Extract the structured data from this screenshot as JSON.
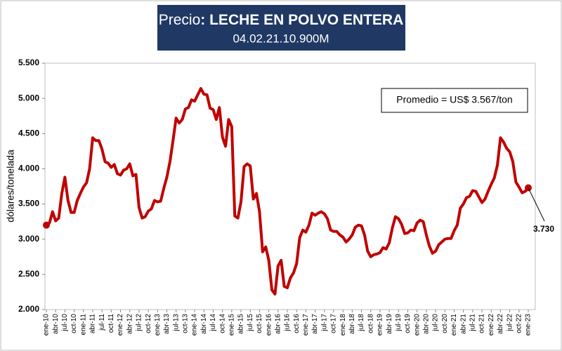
{
  "chart_data": {
    "type": "line",
    "title": [
      "Precio",
      ": LECHE EN POLVO ENTERA"
    ],
    "subtitle": "04.02.21.10.900M",
    "y_label": "dólares/tonelada",
    "annotations": [
      "Promedio = US$ 3.567/ton",
      "3.730"
    ],
    "ylim": [
      2000,
      5500
    ],
    "yticks": [
      {
        "value": 2000,
        "label": "2.000"
      },
      {
        "value": 2500,
        "label": "2.500"
      },
      {
        "value": 3000,
        "label": "3.000"
      },
      {
        "value": 3500,
        "label": "3.500"
      },
      {
        "value": 4000,
        "label": "4.000"
      },
      {
        "value": 4500,
        "label": "4.500"
      },
      {
        "value": 5000,
        "label": "5.000"
      },
      {
        "value": 5500,
        "label": "5.500"
      }
    ],
    "categories": [
      "ene-10",
      null,
      null,
      "abr-10",
      null,
      null,
      "jul-10",
      null,
      null,
      "oct-10",
      null,
      null,
      "ene-11",
      null,
      null,
      "abr-11",
      null,
      null,
      "jul-11",
      null,
      null,
      "oct-11",
      null,
      null,
      "ene-12",
      null,
      null,
      "abr-12",
      null,
      null,
      "jul-12",
      null,
      null,
      "oct-12",
      null,
      null,
      "ene-13",
      null,
      null,
      "abr-13",
      null,
      null,
      "jul-13",
      null,
      null,
      "oct-13",
      null,
      null,
      "ene-14",
      null,
      null,
      "abr-14",
      null,
      null,
      "jul-14",
      null,
      null,
      "oct-14",
      null,
      null,
      "ene-15",
      null,
      null,
      "abr-15",
      null,
      null,
      "jul-15",
      null,
      null,
      "oct-15",
      null,
      null,
      "ene-16",
      null,
      null,
      "abr-16",
      null,
      null,
      "jul-16",
      null,
      null,
      "oct-16",
      null,
      null,
      "ene-17",
      null,
      null,
      "abr-17",
      null,
      null,
      "jul-17",
      null,
      null,
      "oct-17",
      null,
      null,
      "ene-18",
      null,
      null,
      "abr-18",
      null,
      null,
      "jul-18",
      null,
      null,
      "oct-18",
      null,
      null,
      "ene-19",
      null,
      null,
      "abr-19",
      null,
      null,
      "jul-19",
      null,
      null,
      "oct-19",
      null,
      null,
      "ene-20",
      null,
      null,
      "abr-20",
      null,
      null,
      "jul-20",
      null,
      null,
      "oct-20",
      null,
      null,
      "ene-21",
      null,
      null,
      "abr-21",
      null,
      null,
      "jul-21",
      null,
      null,
      "oct-21",
      null,
      null,
      "ene-22",
      null,
      null,
      "abr-22",
      null,
      null,
      "jul-22",
      null,
      null,
      "oct-22",
      null,
      null,
      "ene-23"
    ],
    "series": [
      {
        "color": "#c00000",
        "values": [
          3200,
          3230,
          3390,
          3260,
          3300,
          3650,
          3880,
          3550,
          3380,
          3380,
          3550,
          3650,
          3740,
          3800,
          4000,
          4440,
          4400,
          4400,
          4280,
          4100,
          4080,
          4020,
          4060,
          3930,
          3910,
          3980,
          4000,
          4070,
          3900,
          3920,
          3450,
          3300,
          3320,
          3400,
          3430,
          3550,
          3530,
          3540,
          3720,
          3880,
          4100,
          4400,
          4720,
          4650,
          4700,
          4850,
          4870,
          4980,
          4960,
          5050,
          5140,
          5060,
          5050,
          4860,
          4840,
          4700,
          4870,
          4450,
          4320,
          4700,
          4600,
          3330,
          3300,
          3530,
          4030,
          4070,
          4040,
          3570,
          3650,
          3390,
          2820,
          2890,
          2700,
          2280,
          2220,
          2620,
          2700,
          2330,
          2310,
          2450,
          2520,
          2650,
          3020,
          3130,
          3100,
          3200,
          3370,
          3340,
          3370,
          3390,
          3360,
          3290,
          3130,
          3110,
          3110,
          3060,
          3030,
          2960,
          3000,
          3060,
          3170,
          3200,
          3190,
          3060,
          2830,
          2750,
          2780,
          2790,
          2810,
          2880,
          2860,
          2950,
          3160,
          3320,
          3290,
          3210,
          3080,
          3090,
          3130,
          3120,
          3230,
          3270,
          3250,
          3060,
          2900,
          2800,
          2830,
          2920,
          2960,
          3000,
          3010,
          3010,
          3120,
          3200,
          3440,
          3500,
          3590,
          3610,
          3690,
          3680,
          3600,
          3520,
          3570,
          3680,
          3780,
          3870,
          4050,
          4440,
          4380,
          4290,
          4240,
          4100,
          3810,
          3740,
          3660,
          3680,
          3730
        ]
      }
    ]
  }
}
